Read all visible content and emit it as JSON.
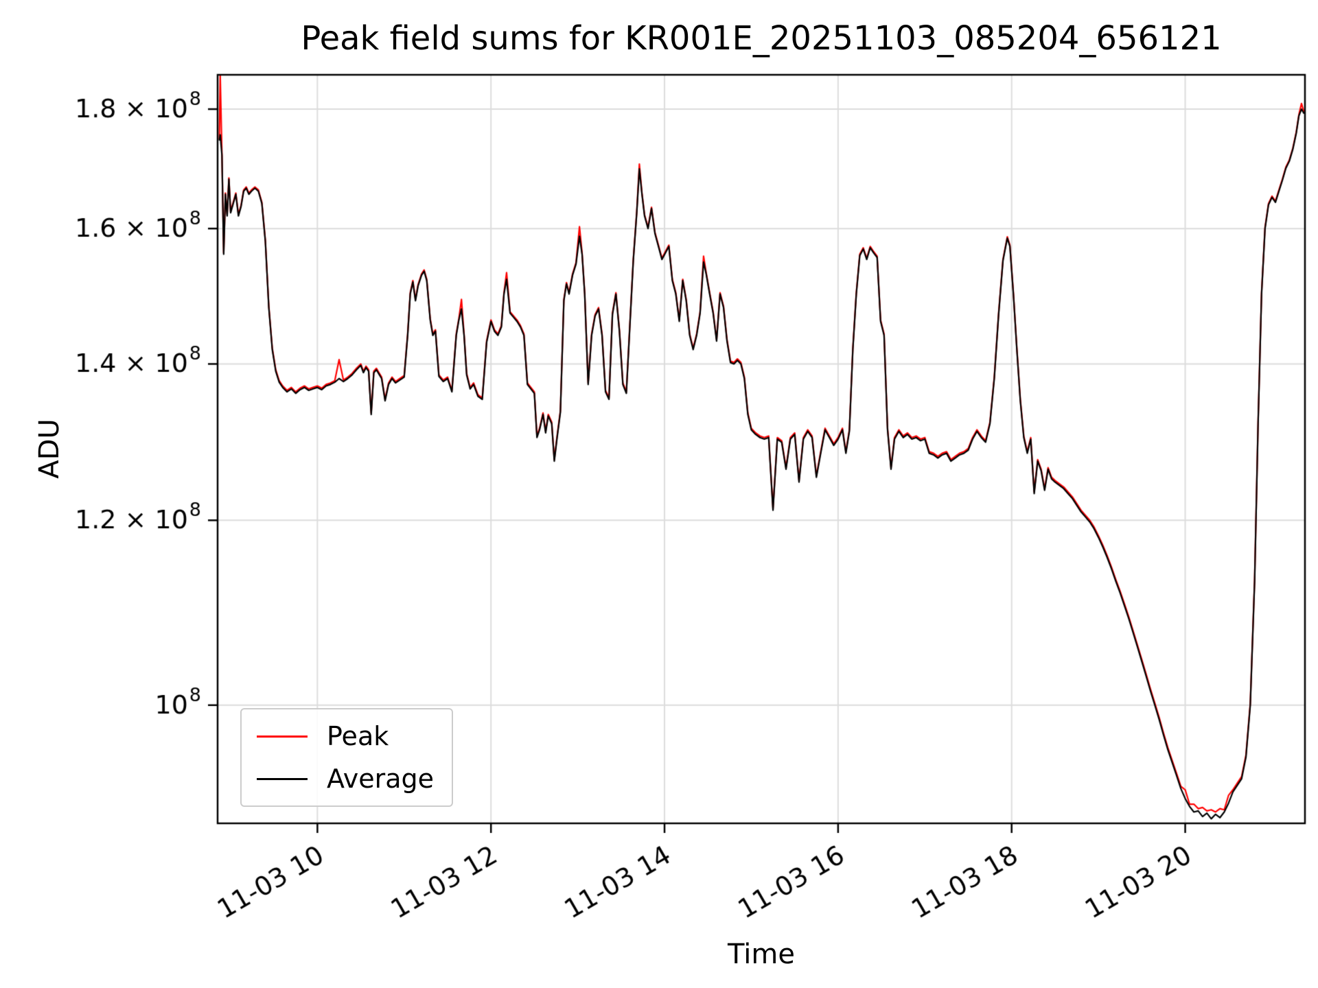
{
  "chart_data": {
    "type": "line",
    "title": "Peak field sums for KR001E_20251103_085204_656121",
    "xlabel": "Time",
    "ylabel": "ADU",
    "yscale": "log",
    "values_unit": "ADU",
    "values_scale": 100000000,
    "xlim_hours": [
      8.85,
      21.38
    ],
    "ylim": [
      0.89,
      1.862
    ],
    "grid": true,
    "grid_color": "#dcdcdc",
    "xticks": [
      {
        "t": 10,
        "label": "11-03 10"
      },
      {
        "t": 12,
        "label": "11-03 12"
      },
      {
        "t": 14,
        "label": "11-03 14"
      },
      {
        "t": 16,
        "label": "11-03 16"
      },
      {
        "t": 18,
        "label": "11-03 18"
      },
      {
        "t": 20,
        "label": "11-03 20"
      }
    ],
    "yticks": [
      {
        "v": 1.0,
        "label": "10⁸",
        "coef": "",
        "exp": "8"
      },
      {
        "v": 1.2,
        "label": "1.2 × 10⁸",
        "coef": "1.2",
        "exp": "8"
      },
      {
        "v": 1.4,
        "label": "1.4 × 10⁸",
        "coef": "1.4",
        "exp": "8"
      },
      {
        "v": 1.6,
        "label": "1.6 × 10⁸",
        "coef": "1.6",
        "exp": "8"
      },
      {
        "v": 1.8,
        "label": "1.8 × 10⁸",
        "coef": "1.8",
        "exp": "8"
      }
    ],
    "legend": {
      "position": "lower left",
      "entries": [
        {
          "label": "Peak",
          "color": "#ff0000"
        },
        {
          "label": "Average",
          "color": "#000000"
        }
      ]
    },
    "peak_offset_default": 0.002,
    "peak_spikes": [
      [
        8.88,
        1.862
      ],
      [
        10.25,
        1.406
      ],
      [
        11.66,
        1.492
      ],
      [
        12.18,
        1.532
      ],
      [
        13.02,
        1.603
      ],
      [
        13.71,
        1.705
      ],
      [
        14.45,
        1.557
      ],
      [
        20.0,
        0.92
      ],
      [
        20.1,
        0.907
      ],
      [
        20.2,
        0.904
      ],
      [
        20.3,
        0.902
      ],
      [
        20.4,
        0.903
      ],
      [
        20.5,
        0.915
      ],
      [
        21.34,
        1.81
      ]
    ],
    "points": [
      [
        8.87,
        1.745
      ],
      [
        8.88,
        1.755
      ],
      [
        8.9,
        1.72
      ],
      [
        8.92,
        1.56
      ],
      [
        8.94,
        1.655
      ],
      [
        8.96,
        1.62
      ],
      [
        8.98,
        1.68
      ],
      [
        9.0,
        1.625
      ],
      [
        9.03,
        1.64
      ],
      [
        9.06,
        1.655
      ],
      [
        9.09,
        1.62
      ],
      [
        9.12,
        1.635
      ],
      [
        9.15,
        1.66
      ],
      [
        9.18,
        1.665
      ],
      [
        9.21,
        1.655
      ],
      [
        9.24,
        1.66
      ],
      [
        9.28,
        1.665
      ],
      [
        9.32,
        1.66
      ],
      [
        9.36,
        1.64
      ],
      [
        9.4,
        1.58
      ],
      [
        9.44,
        1.48
      ],
      [
        9.48,
        1.42
      ],
      [
        9.52,
        1.39
      ],
      [
        9.56,
        1.375
      ],
      [
        9.6,
        1.368
      ],
      [
        9.65,
        1.362
      ],
      [
        9.7,
        1.366
      ],
      [
        9.75,
        1.36
      ],
      [
        9.8,
        1.365
      ],
      [
        9.85,
        1.368
      ],
      [
        9.9,
        1.364
      ],
      [
        9.95,
        1.366
      ],
      [
        10.0,
        1.368
      ],
      [
        10.05,
        1.365
      ],
      [
        10.1,
        1.37
      ],
      [
        10.15,
        1.372
      ],
      [
        10.2,
        1.375
      ],
      [
        10.25,
        1.38
      ],
      [
        10.3,
        1.376
      ],
      [
        10.35,
        1.38
      ],
      [
        10.4,
        1.385
      ],
      [
        10.45,
        1.392
      ],
      [
        10.5,
        1.398
      ],
      [
        10.53,
        1.388
      ],
      [
        10.56,
        1.395
      ],
      [
        10.59,
        1.39
      ],
      [
        10.62,
        1.332
      ],
      [
        10.65,
        1.388
      ],
      [
        10.68,
        1.392
      ],
      [
        10.71,
        1.386
      ],
      [
        10.74,
        1.38
      ],
      [
        10.78,
        1.35
      ],
      [
        10.82,
        1.372
      ],
      [
        10.86,
        1.38
      ],
      [
        10.9,
        1.374
      ],
      [
        10.95,
        1.378
      ],
      [
        11.0,
        1.382
      ],
      [
        11.04,
        1.44
      ],
      [
        11.07,
        1.5
      ],
      [
        11.1,
        1.518
      ],
      [
        11.13,
        1.49
      ],
      [
        11.16,
        1.512
      ],
      [
        11.2,
        1.528
      ],
      [
        11.23,
        1.534
      ],
      [
        11.26,
        1.52
      ],
      [
        11.3,
        1.462
      ],
      [
        11.33,
        1.44
      ],
      [
        11.36,
        1.446
      ],
      [
        11.4,
        1.383
      ],
      [
        11.45,
        1.376
      ],
      [
        11.5,
        1.38
      ],
      [
        11.55,
        1.362
      ],
      [
        11.6,
        1.44
      ],
      [
        11.63,
        1.462
      ],
      [
        11.66,
        1.478
      ],
      [
        11.69,
        1.44
      ],
      [
        11.72,
        1.385
      ],
      [
        11.76,
        1.366
      ],
      [
        11.8,
        1.372
      ],
      [
        11.85,
        1.356
      ],
      [
        11.9,
        1.352
      ],
      [
        11.95,
        1.43
      ],
      [
        12.0,
        1.46
      ],
      [
        12.04,
        1.446
      ],
      [
        12.08,
        1.44
      ],
      [
        12.12,
        1.452
      ],
      [
        12.15,
        1.5
      ],
      [
        12.18,
        1.522
      ],
      [
        12.22,
        1.472
      ],
      [
        12.26,
        1.466
      ],
      [
        12.3,
        1.46
      ],
      [
        12.34,
        1.452
      ],
      [
        12.38,
        1.44
      ],
      [
        12.42,
        1.372
      ],
      [
        12.46,
        1.366
      ],
      [
        12.5,
        1.36
      ],
      [
        12.53,
        1.302
      ],
      [
        12.56,
        1.312
      ],
      [
        12.6,
        1.332
      ],
      [
        12.63,
        1.308
      ],
      [
        12.66,
        1.33
      ],
      [
        12.7,
        1.32
      ],
      [
        12.73,
        1.272
      ],
      [
        12.76,
        1.3
      ],
      [
        12.8,
        1.335
      ],
      [
        12.84,
        1.49
      ],
      [
        12.87,
        1.515
      ],
      [
        12.9,
        1.5
      ],
      [
        12.94,
        1.528
      ],
      [
        12.98,
        1.545
      ],
      [
        13.02,
        1.588
      ],
      [
        13.05,
        1.56
      ],
      [
        13.08,
        1.5
      ],
      [
        13.12,
        1.372
      ],
      [
        13.16,
        1.44
      ],
      [
        13.2,
        1.468
      ],
      [
        13.24,
        1.478
      ],
      [
        13.28,
        1.44
      ],
      [
        13.32,
        1.362
      ],
      [
        13.36,
        1.352
      ],
      [
        13.4,
        1.47
      ],
      [
        13.44,
        1.5
      ],
      [
        13.48,
        1.446
      ],
      [
        13.52,
        1.372
      ],
      [
        13.56,
        1.36
      ],
      [
        13.6,
        1.452
      ],
      [
        13.64,
        1.55
      ],
      [
        13.68,
        1.625
      ],
      [
        13.71,
        1.697
      ],
      [
        13.74,
        1.655
      ],
      [
        13.77,
        1.62
      ],
      [
        13.81,
        1.6
      ],
      [
        13.85,
        1.632
      ],
      [
        13.89,
        1.592
      ],
      [
        13.93,
        1.572
      ],
      [
        13.97,
        1.552
      ],
      [
        14.01,
        1.562
      ],
      [
        14.05,
        1.572
      ],
      [
        14.09,
        1.52
      ],
      [
        14.13,
        1.5
      ],
      [
        14.17,
        1.46
      ],
      [
        14.21,
        1.52
      ],
      [
        14.25,
        1.49
      ],
      [
        14.29,
        1.44
      ],
      [
        14.33,
        1.42
      ],
      [
        14.37,
        1.44
      ],
      [
        14.41,
        1.472
      ],
      [
        14.45,
        1.548
      ],
      [
        14.48,
        1.53
      ],
      [
        14.52,
        1.5
      ],
      [
        14.56,
        1.472
      ],
      [
        14.6,
        1.432
      ],
      [
        14.64,
        1.5
      ],
      [
        14.68,
        1.48
      ],
      [
        14.72,
        1.432
      ],
      [
        14.76,
        1.402
      ],
      [
        14.8,
        1.4
      ],
      [
        14.84,
        1.405
      ],
      [
        14.88,
        1.4
      ],
      [
        14.92,
        1.38
      ],
      [
        14.96,
        1.332
      ],
      [
        15.0,
        1.312
      ],
      [
        15.05,
        1.306
      ],
      [
        15.1,
        1.302
      ],
      [
        15.15,
        1.3
      ],
      [
        15.2,
        1.302
      ],
      [
        15.25,
        1.212
      ],
      [
        15.3,
        1.3
      ],
      [
        15.35,
        1.296
      ],
      [
        15.4,
        1.262
      ],
      [
        15.45,
        1.3
      ],
      [
        15.5,
        1.306
      ],
      [
        15.55,
        1.246
      ],
      [
        15.6,
        1.3
      ],
      [
        15.65,
        1.31
      ],
      [
        15.7,
        1.302
      ],
      [
        15.75,
        1.252
      ],
      [
        15.8,
        1.282
      ],
      [
        15.85,
        1.312
      ],
      [
        15.9,
        1.302
      ],
      [
        15.95,
        1.292
      ],
      [
        16.0,
        1.3
      ],
      [
        16.05,
        1.312
      ],
      [
        16.09,
        1.282
      ],
      [
        16.13,
        1.31
      ],
      [
        16.17,
        1.42
      ],
      [
        16.21,
        1.5
      ],
      [
        16.25,
        1.558
      ],
      [
        16.29,
        1.568
      ],
      [
        16.33,
        1.552
      ],
      [
        16.37,
        1.57
      ],
      [
        16.41,
        1.562
      ],
      [
        16.45,
        1.555
      ],
      [
        16.49,
        1.46
      ],
      [
        16.53,
        1.44
      ],
      [
        16.57,
        1.312
      ],
      [
        16.61,
        1.262
      ],
      [
        16.65,
        1.3
      ],
      [
        16.7,
        1.31
      ],
      [
        16.75,
        1.302
      ],
      [
        16.8,
        1.306
      ],
      [
        16.85,
        1.3
      ],
      [
        16.9,
        1.302
      ],
      [
        16.95,
        1.298
      ],
      [
        17.0,
        1.3
      ],
      [
        17.05,
        1.282
      ],
      [
        17.1,
        1.28
      ],
      [
        17.15,
        1.276
      ],
      [
        17.2,
        1.28
      ],
      [
        17.25,
        1.282
      ],
      [
        17.3,
        1.272
      ],
      [
        17.35,
        1.276
      ],
      [
        17.4,
        1.28
      ],
      [
        17.45,
        1.282
      ],
      [
        17.5,
        1.286
      ],
      [
        17.55,
        1.3
      ],
      [
        17.6,
        1.31
      ],
      [
        17.65,
        1.302
      ],
      [
        17.7,
        1.296
      ],
      [
        17.75,
        1.32
      ],
      [
        17.8,
        1.38
      ],
      [
        17.85,
        1.47
      ],
      [
        17.9,
        1.55
      ],
      [
        17.95,
        1.585
      ],
      [
        17.98,
        1.572
      ],
      [
        18.02,
        1.5
      ],
      [
        18.06,
        1.42
      ],
      [
        18.1,
        1.35
      ],
      [
        18.14,
        1.302
      ],
      [
        18.18,
        1.282
      ],
      [
        18.22,
        1.3
      ],
      [
        18.26,
        1.232
      ],
      [
        18.3,
        1.272
      ],
      [
        18.34,
        1.26
      ],
      [
        18.38,
        1.236
      ],
      [
        18.42,
        1.262
      ],
      [
        18.46,
        1.25
      ],
      [
        18.5,
        1.246
      ],
      [
        18.55,
        1.242
      ],
      [
        18.6,
        1.238
      ],
      [
        18.65,
        1.232
      ],
      [
        18.7,
        1.226
      ],
      [
        18.75,
        1.218
      ],
      [
        18.8,
        1.21
      ],
      [
        18.85,
        1.204
      ],
      [
        18.9,
        1.198
      ],
      [
        18.95,
        1.19
      ],
      [
        19.0,
        1.18
      ],
      [
        19.05,
        1.169
      ],
      [
        19.1,
        1.157
      ],
      [
        19.15,
        1.144
      ],
      [
        19.2,
        1.13
      ],
      [
        19.25,
        1.117
      ],
      [
        19.3,
        1.103
      ],
      [
        19.35,
        1.089
      ],
      [
        19.4,
        1.074
      ],
      [
        19.45,
        1.059
      ],
      [
        19.5,
        1.044
      ],
      [
        19.55,
        1.029
      ],
      [
        19.6,
        1.014
      ],
      [
        19.65,
        1.0
      ],
      [
        19.7,
        0.986
      ],
      [
        19.75,
        0.971
      ],
      [
        19.8,
        0.957
      ],
      [
        19.85,
        0.945
      ],
      [
        19.9,
        0.933
      ],
      [
        19.95,
        0.921
      ],
      [
        20.0,
        0.912
      ],
      [
        20.05,
        0.905
      ],
      [
        20.1,
        0.9
      ],
      [
        20.15,
        0.901
      ],
      [
        20.2,
        0.896
      ],
      [
        20.25,
        0.899
      ],
      [
        20.3,
        0.894
      ],
      [
        20.35,
        0.898
      ],
      [
        20.4,
        0.895
      ],
      [
        20.45,
        0.9
      ],
      [
        20.5,
        0.908
      ],
      [
        20.55,
        0.918
      ],
      [
        20.6,
        0.924
      ],
      [
        20.65,
        0.93
      ],
      [
        20.7,
        0.95
      ],
      [
        20.75,
        1.0
      ],
      [
        20.8,
        1.13
      ],
      [
        20.84,
        1.32
      ],
      [
        20.88,
        1.5
      ],
      [
        20.92,
        1.6
      ],
      [
        20.96,
        1.638
      ],
      [
        21.0,
        1.65
      ],
      [
        21.04,
        1.642
      ],
      [
        21.08,
        1.66
      ],
      [
        21.12,
        1.678
      ],
      [
        21.16,
        1.698
      ],
      [
        21.2,
        1.71
      ],
      [
        21.24,
        1.73
      ],
      [
        21.28,
        1.758
      ],
      [
        21.31,
        1.788
      ],
      [
        21.34,
        1.8
      ],
      [
        21.37,
        1.792
      ]
    ]
  }
}
